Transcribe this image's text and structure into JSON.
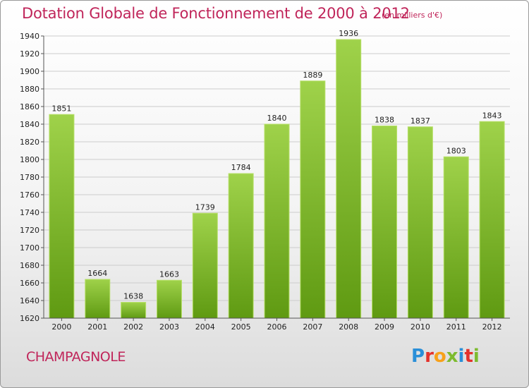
{
  "header": {
    "title": "Dotation Globale de Fonctionnement de 2000 à 2012",
    "unit": "(en milliers d'€)"
  },
  "footer": {
    "commune": "CHAMPAGNOLE",
    "logo_text": "Proxiti",
    "logo_colors": [
      "#2a8fd8",
      "#e4322b",
      "#f7a11a",
      "#7dbb2f",
      "#2a8fd8",
      "#e4322b",
      "#7dbb2f"
    ]
  },
  "colors": {
    "title": "#c0255a",
    "bar_top": "#9fd24a",
    "bar_bottom": "#5f9a12",
    "grid": "#cccccc"
  },
  "chart_data": {
    "type": "bar",
    "categories": [
      "2000",
      "2001",
      "2002",
      "2003",
      "2004",
      "2005",
      "2006",
      "2007",
      "2008",
      "2009",
      "2010",
      "2011",
      "2012"
    ],
    "values": [
      1851,
      1664,
      1638,
      1663,
      1739,
      1784,
      1840,
      1889,
      1936,
      1838,
      1837,
      1803,
      1843
    ],
    "ylim": [
      1620,
      1940
    ],
    "ytick_step": 20,
    "grid": true,
    "xlabel": "",
    "ylabel": ""
  }
}
